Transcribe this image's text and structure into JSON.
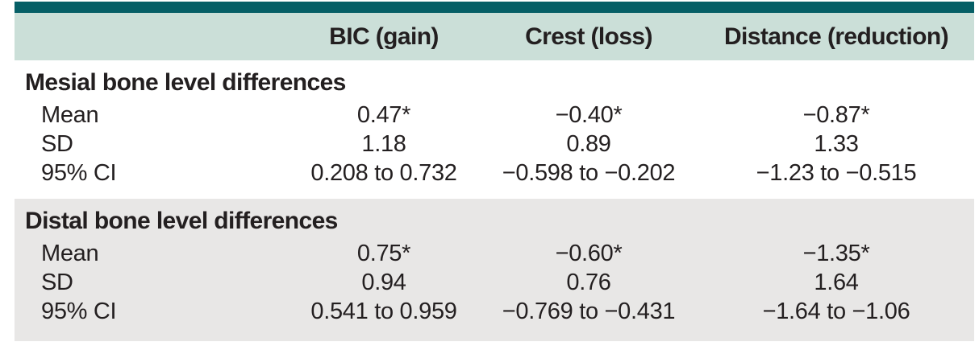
{
  "colors": {
    "top_bar_teal": "#065f66",
    "header_band_sage": "#cbdfd8",
    "distal_band_gray": "#e8e7e6",
    "text": "#231f20",
    "background": "#ffffff"
  },
  "table": {
    "columns": [
      "BIC (gain)",
      "Crest (loss)",
      "Distance (reduction)"
    ],
    "sections": [
      {
        "title": "Mesial bone level differences",
        "rows": [
          {
            "label": "Mean",
            "values": [
              "0.47*",
              "−0.40*",
              "−0.87*"
            ]
          },
          {
            "label": "SD",
            "values": [
              "1.18",
              "0.89",
              "1.33"
            ]
          },
          {
            "label": "95% CI",
            "values": [
              "0.208 to 0.732",
              "−0.598 to −0.202",
              "−1.23 to −0.515"
            ]
          }
        ]
      },
      {
        "title": "Distal bone level differences",
        "rows": [
          {
            "label": "Mean",
            "values": [
              "0.75*",
              "−0.60*",
              "−1.35*"
            ]
          },
          {
            "label": "SD",
            "values": [
              "0.94",
              "0.76",
              "1.64"
            ]
          },
          {
            "label": "95% CI",
            "values": [
              "0.541 to 0.959",
              "−0.769 to −0.431",
              "−1.64 to −1.06"
            ]
          }
        ]
      }
    ]
  }
}
